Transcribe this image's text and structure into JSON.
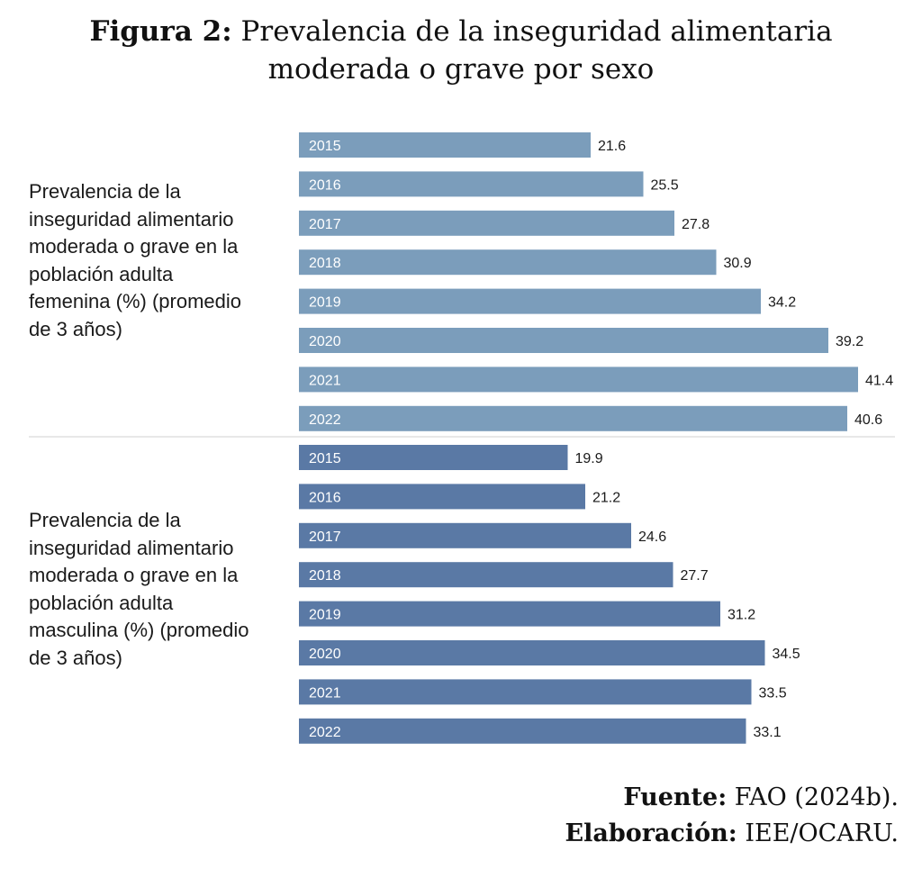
{
  "title": {
    "prefix": "Figura 2:",
    "line1": "Prevalencia de la inseguridad alimentaria",
    "line2": "moderada o grave por sexo"
  },
  "colors": {
    "female": "#7b9dbb",
    "male": "#5a79a5",
    "divider": "#d0d0d0"
  },
  "chart_data": {
    "type": "bar",
    "orientation": "horizontal",
    "groups": [
      {
        "name": "Prevalencia de la inseguridad alimentario moderada o grave en la población adulta femenina (%) (promedio de 3 años)",
        "label_lines": [
          "Prevalencia de la",
          "inseguridad alimentario",
          "moderada o grave en la",
          "población adulta",
          "femenina (%) (promedio",
          "de 3 años)"
        ],
        "categories": [
          "2015",
          "2016",
          "2017",
          "2018",
          "2019",
          "2020",
          "2021",
          "2022"
        ],
        "values": [
          21.6,
          25.5,
          27.8,
          30.9,
          34.2,
          39.2,
          41.4,
          40.6
        ],
        "labels": [
          "21.6",
          "25.5",
          "27.8",
          "30.9",
          "34.2",
          "39.2",
          "41.4",
          "40.6"
        ]
      },
      {
        "name": "Prevalencia de la inseguridad alimentario moderada o grave en la población adulta masculina (%) (promedio de 3 años)",
        "label_lines": [
          "Prevalencia de la",
          "inseguridad alimentario",
          "moderada o grave en la",
          "población adulta",
          "masculina (%) (promedio",
          "de 3 años)"
        ],
        "categories": [
          "2015",
          "2016",
          "2017",
          "2018",
          "2019",
          "2020",
          "2021",
          "2022"
        ],
        "values": [
          19.9,
          21.2,
          24.6,
          27.7,
          31.2,
          34.5,
          33.5,
          33.1
        ],
        "labels": [
          "19.9",
          "21.2",
          "24.6",
          "27.7",
          "31.2",
          "34.5",
          "33.5",
          "33.1"
        ]
      }
    ],
    "xlim": [
      0,
      41.4
    ],
    "grid": false,
    "legend": "none"
  },
  "footer": {
    "source_label": "Fuente:",
    "source_text": "FAO (2024b).",
    "credit_label": "Elaboración:",
    "credit_text": "IEE/OCARU."
  }
}
